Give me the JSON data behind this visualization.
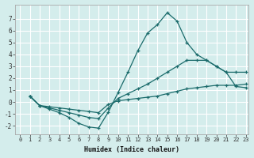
{
  "xlabel": "Humidex (Indice chaleur)",
  "background_color": "#d4edec",
  "grid_color": "#c0dede",
  "line_color": "#1a6b6b",
  "xmin": -0.5,
  "xmax": 23.3,
  "ymin": -2.7,
  "ymax": 8.2,
  "yticks": [
    -2,
    -1,
    0,
    1,
    2,
    3,
    4,
    5,
    6,
    7
  ],
  "xticks": [
    0,
    1,
    2,
    3,
    4,
    5,
    6,
    7,
    8,
    9,
    10,
    11,
    12,
    13,
    14,
    15,
    16,
    17,
    18,
    19,
    20,
    21,
    22,
    23
  ],
  "curve1_x": [
    1,
    2,
    3,
    4,
    5,
    6,
    7,
    8,
    9,
    10,
    11,
    12,
    13,
    14,
    15,
    16,
    17,
    18,
    19,
    20,
    21,
    22,
    23
  ],
  "curve1_y": [
    0.5,
    -0.3,
    -0.6,
    -0.9,
    -1.3,
    -1.8,
    -2.1,
    -2.2,
    -0.85,
    0.8,
    2.5,
    4.3,
    5.8,
    6.5,
    7.5,
    6.8,
    5.0,
    4.0,
    3.5,
    3.0,
    2.5,
    1.3,
    1.2
  ],
  "curve2_x": [
    1,
    2,
    3,
    4,
    5,
    6,
    7,
    8,
    9,
    10,
    11,
    12,
    13,
    14,
    15,
    16,
    17,
    18,
    19,
    20,
    21,
    22,
    23
  ],
  "curve2_y": [
    0.5,
    -0.3,
    -0.5,
    -0.7,
    -0.9,
    -1.1,
    -1.3,
    -1.4,
    -0.5,
    0.3,
    0.7,
    1.1,
    1.5,
    2.0,
    2.5,
    3.0,
    3.5,
    3.5,
    3.5,
    3.0,
    2.5,
    2.5,
    2.5
  ],
  "curve3_x": [
    1,
    2,
    3,
    4,
    5,
    6,
    7,
    8,
    9,
    10,
    11,
    12,
    13,
    14,
    15,
    16,
    17,
    18,
    19,
    20,
    21,
    22,
    23
  ],
  "curve3_y": [
    0.5,
    -0.3,
    -0.4,
    -0.5,
    -0.6,
    -0.7,
    -0.8,
    -0.9,
    -0.2,
    0.1,
    0.2,
    0.3,
    0.4,
    0.5,
    0.7,
    0.9,
    1.1,
    1.2,
    1.3,
    1.4,
    1.4,
    1.4,
    1.5
  ]
}
